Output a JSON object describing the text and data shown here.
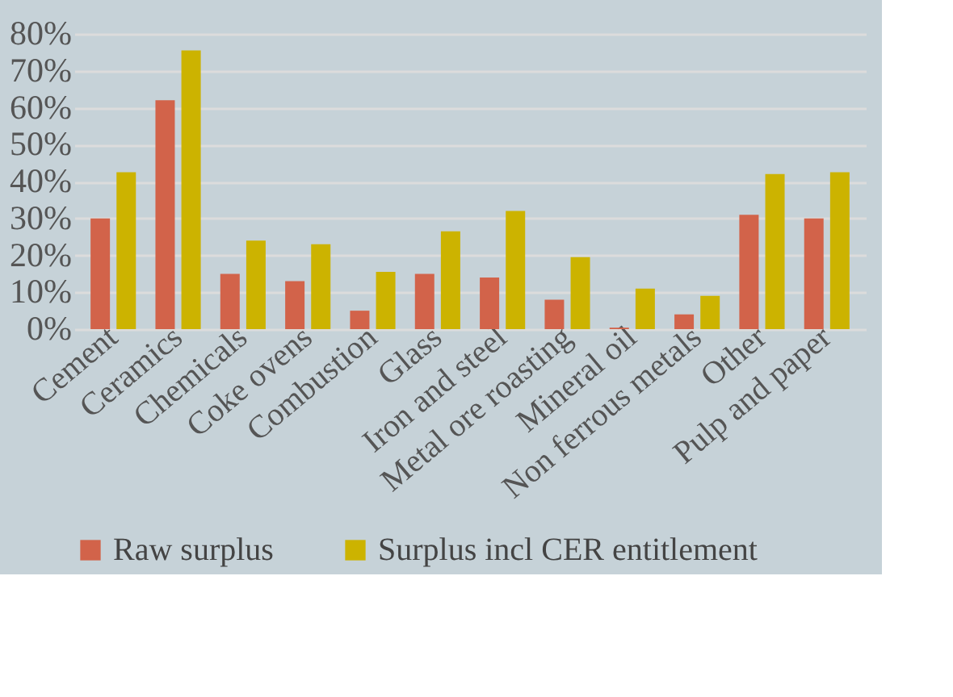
{
  "chart_data": {
    "type": "bar",
    "categories": [
      "Cement",
      "Ceramics",
      "Chemicals",
      "Coke ovens",
      "Combustion",
      "Glass",
      "Iron and steel",
      "Metal ore roasting",
      "Mineral oil",
      "Non ferrous metals",
      "Other",
      "Pulp and paper"
    ],
    "series": [
      {
        "name": "Raw surplus",
        "color": "#d2634a",
        "values": [
          30,
          62,
          15,
          13,
          5,
          15,
          14,
          8,
          0.4,
          4,
          31,
          30
        ]
      },
      {
        "name": "Surplus incl CER entitlement",
        "color": "#ccb300",
        "values": [
          42.5,
          75.5,
          24,
          23,
          15.5,
          26.5,
          32,
          19.5,
          11,
          9,
          42,
          42.5
        ]
      }
    ],
    "ylim": [
      0,
      80
    ],
    "yticks": [
      {
        "value": 0,
        "label": "0%"
      },
      {
        "value": 10,
        "label": "10%"
      },
      {
        "value": 20,
        "label": "20%"
      },
      {
        "value": 30,
        "label": "30%"
      },
      {
        "value": 40,
        "label": "40%"
      },
      {
        "value": 50,
        "label": "50%"
      },
      {
        "value": 60,
        "label": "60%"
      },
      {
        "value": 70,
        "label": "70%"
      },
      {
        "value": 80,
        "label": "80%"
      }
    ],
    "grid": "y",
    "legend": "bottom"
  }
}
